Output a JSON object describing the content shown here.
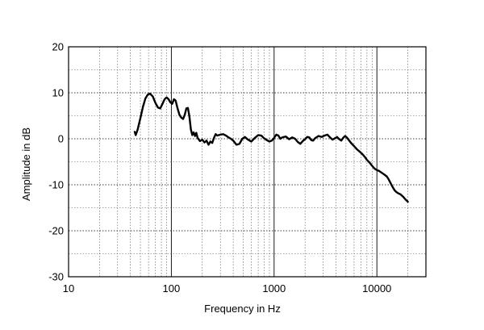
{
  "chart_data": {
    "type": "line",
    "title": "",
    "xlabel": "Frequency in Hz",
    "ylabel": "Amplitude in dB",
    "xscale": "log",
    "xlim": [
      10,
      30000
    ],
    "ylim": [
      -30,
      20
    ],
    "x_ticks": [
      10,
      100,
      1000,
      10000
    ],
    "x_tick_labels": [
      "10",
      "100",
      "1000",
      "10000"
    ],
    "y_ticks": [
      20,
      10,
      0,
      -10,
      -20,
      -30
    ],
    "y_tick_labels": [
      "20",
      "10",
      "0",
      "-10",
      "-20",
      "-30"
    ],
    "grid": true,
    "series": [
      {
        "color": "#000000",
        "points": [
          [
            44,
            1.5
          ],
          [
            45,
            0.8
          ],
          [
            47,
            2.0
          ],
          [
            50,
            4.5
          ],
          [
            53,
            7.0
          ],
          [
            56,
            8.8
          ],
          [
            59,
            9.6
          ],
          [
            62,
            9.8
          ],
          [
            66,
            9.2
          ],
          [
            70,
            7.8
          ],
          [
            74,
            6.8
          ],
          [
            78,
            6.6
          ],
          [
            82,
            7.6
          ],
          [
            86,
            8.6
          ],
          [
            90,
            9.0
          ],
          [
            94,
            8.6
          ],
          [
            98,
            7.9
          ],
          [
            102,
            7.6
          ],
          [
            106,
            8.6
          ],
          [
            110,
            8.3
          ],
          [
            115,
            6.6
          ],
          [
            120,
            5.2
          ],
          [
            125,
            4.6
          ],
          [
            130,
            4.3
          ],
          [
            135,
            5.2
          ],
          [
            140,
            6.6
          ],
          [
            145,
            6.7
          ],
          [
            150,
            4.8
          ],
          [
            155,
            2.0
          ],
          [
            160,
            0.8
          ],
          [
            165,
            1.4
          ],
          [
            170,
            0.6
          ],
          [
            175,
            1.3
          ],
          [
            180,
            0.2
          ],
          [
            190,
            -0.5
          ],
          [
            200,
            -0.2
          ],
          [
            210,
            -0.8
          ],
          [
            220,
            -0.4
          ],
          [
            230,
            -1.3
          ],
          [
            240,
            -0.6
          ],
          [
            250,
            -0.9
          ],
          [
            260,
            0.2
          ],
          [
            270,
            1.0
          ],
          [
            280,
            0.7
          ],
          [
            300,
            0.9
          ],
          [
            320,
            1.0
          ],
          [
            340,
            0.7
          ],
          [
            360,
            0.3
          ],
          [
            380,
            0.0
          ],
          [
            400,
            -0.4
          ],
          [
            430,
            -1.3
          ],
          [
            460,
            -1.1
          ],
          [
            490,
            0.0
          ],
          [
            520,
            0.4
          ],
          [
            550,
            -0.1
          ],
          [
            600,
            -0.6
          ],
          [
            650,
            0.2
          ],
          [
            700,
            0.8
          ],
          [
            750,
            0.7
          ],
          [
            800,
            0.1
          ],
          [
            850,
            -0.3
          ],
          [
            900,
            -0.6
          ],
          [
            950,
            -0.4
          ],
          [
            1000,
            0.2
          ],
          [
            1050,
            0.9
          ],
          [
            1100,
            0.7
          ],
          [
            1150,
            0.0
          ],
          [
            1200,
            0.3
          ],
          [
            1300,
            0.5
          ],
          [
            1400,
            -0.1
          ],
          [
            1500,
            0.3
          ],
          [
            1600,
            0.0
          ],
          [
            1700,
            -0.7
          ],
          [
            1800,
            -1.1
          ],
          [
            1900,
            -0.5
          ],
          [
            2000,
            -0.1
          ],
          [
            2100,
            0.4
          ],
          [
            2200,
            0.3
          ],
          [
            2300,
            -0.3
          ],
          [
            2400,
            -0.4
          ],
          [
            2500,
            0.1
          ],
          [
            2700,
            0.6
          ],
          [
            2900,
            0.4
          ],
          [
            3100,
            0.7
          ],
          [
            3300,
            0.9
          ],
          [
            3500,
            0.3
          ],
          [
            3700,
            -0.2
          ],
          [
            3900,
            0.1
          ],
          [
            4100,
            0.4
          ],
          [
            4300,
            -0.1
          ],
          [
            4500,
            -0.4
          ],
          [
            4700,
            0.2
          ],
          [
            4900,
            0.6
          ],
          [
            5100,
            0.3
          ],
          [
            5300,
            -0.2
          ],
          [
            5600,
            -0.9
          ],
          [
            6000,
            -1.6
          ],
          [
            6400,
            -2.3
          ],
          [
            6800,
            -2.8
          ],
          [
            7200,
            -3.3
          ],
          [
            7600,
            -3.9
          ],
          [
            8000,
            -4.6
          ],
          [
            8500,
            -5.2
          ],
          [
            9000,
            -5.9
          ],
          [
            9500,
            -6.5
          ],
          [
            10000,
            -6.8
          ],
          [
            10500,
            -7.0
          ],
          [
            11000,
            -7.3
          ],
          [
            11500,
            -7.6
          ],
          [
            12000,
            -7.9
          ],
          [
            12500,
            -8.2
          ],
          [
            13000,
            -8.8
          ],
          [
            13500,
            -9.5
          ],
          [
            14000,
            -10.2
          ],
          [
            14500,
            -10.8
          ],
          [
            15000,
            -11.3
          ],
          [
            15500,
            -11.6
          ],
          [
            16000,
            -11.8
          ],
          [
            17000,
            -12.1
          ],
          [
            18000,
            -12.6
          ],
          [
            19000,
            -13.2
          ],
          [
            20000,
            -13.7
          ]
        ]
      }
    ]
  }
}
